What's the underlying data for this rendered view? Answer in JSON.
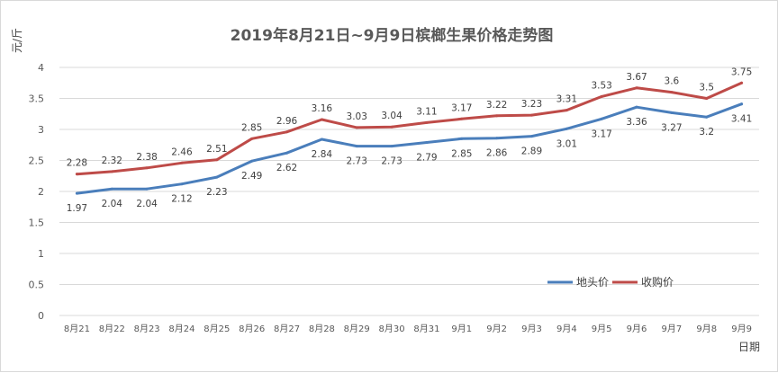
{
  "chart_data": {
    "type": "line",
    "title": "2019年8月21日~9月9日槟榔生果价格走势图",
    "xlabel": "日期",
    "ylabel": "元/斤",
    "ylim": [
      0,
      4
    ],
    "yticks": [
      0,
      0.5,
      1,
      1.5,
      2,
      2.5,
      3,
      3.5,
      4
    ],
    "categories": [
      "8月21",
      "8月22",
      "8月23",
      "8月24",
      "8月25",
      "8月26",
      "8月27",
      "8月28",
      "8月29",
      "8月30",
      "8月31",
      "9月1",
      "9月2",
      "9月3",
      "9月4",
      "9月5",
      "9月6",
      "9月7",
      "9月8",
      "9月9"
    ],
    "series": [
      {
        "name": "地头价",
        "color": "#4a7ebb",
        "values": [
          1.97,
          2.04,
          2.04,
          2.12,
          2.23,
          2.49,
          2.62,
          2.84,
          2.73,
          2.73,
          2.79,
          2.85,
          2.86,
          2.89,
          3.01,
          3.17,
          3.36,
          3.27,
          3.2,
          3.41
        ],
        "labels": [
          "1.97",
          "2.04",
          "2.04",
          "2.12",
          "2.23",
          "2.49",
          "2.62",
          "2.84",
          "2.73",
          "2.73",
          "2.79",
          "2.85",
          "2.86",
          "2.89",
          "3.01",
          "3.17",
          "3.36",
          "3.27",
          "3.2",
          "3.41"
        ]
      },
      {
        "name": "收购价",
        "color": "#be4b48",
        "values": [
          2.28,
          2.32,
          2.38,
          2.46,
          2.51,
          2.85,
          2.96,
          3.16,
          3.03,
          3.04,
          3.11,
          3.17,
          3.22,
          3.23,
          3.31,
          3.53,
          3.67,
          3.6,
          3.5,
          3.75
        ],
        "labels": [
          "2.28",
          "2.32",
          "2.38",
          "2.46",
          "2.51",
          "2.85",
          "2.96",
          "3.16",
          "3.03",
          "3.04",
          "3.11",
          "3.17",
          "3.22",
          "3.23",
          "3.31",
          "3.53",
          "3.67",
          "3.6",
          "3.5",
          "3.75"
        ]
      }
    ],
    "grid": true,
    "legend": "bottom-right"
  }
}
